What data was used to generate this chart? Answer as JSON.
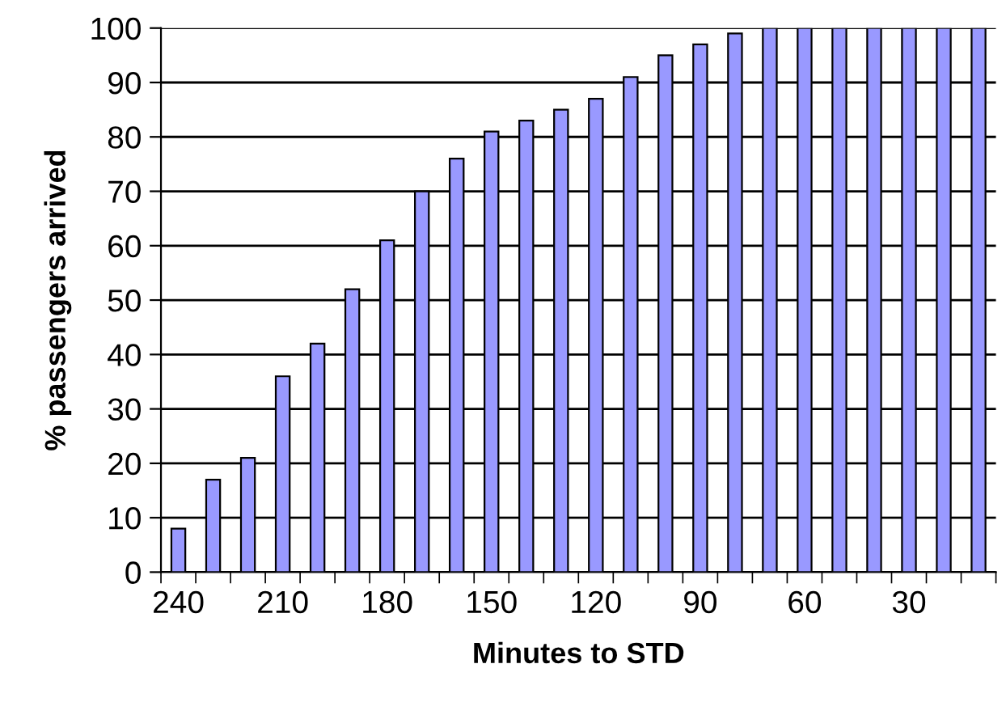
{
  "chart_data": {
    "type": "bar",
    "xlabel": "Minutes to STD",
    "ylabel": "% passengers arrived",
    "categories": [
      "240",
      null,
      null,
      "210",
      null,
      null,
      "180",
      null,
      null,
      "150",
      null,
      null,
      "120",
      null,
      null,
      "90",
      null,
      null,
      "60",
      null,
      null,
      "30",
      null,
      null
    ],
    "values": [
      8,
      17,
      21,
      36,
      42,
      52,
      61,
      70,
      76,
      81,
      83,
      85,
      87,
      91,
      95,
      97,
      99,
      100,
      100,
      100,
      100,
      100,
      100,
      100
    ],
    "color": "#9999ff",
    "ylim": [
      0,
      100
    ],
    "yticks": [
      0,
      10,
      20,
      30,
      40,
      50,
      60,
      70,
      80,
      90,
      100
    ],
    "grid": "y",
    "legend": false
  }
}
